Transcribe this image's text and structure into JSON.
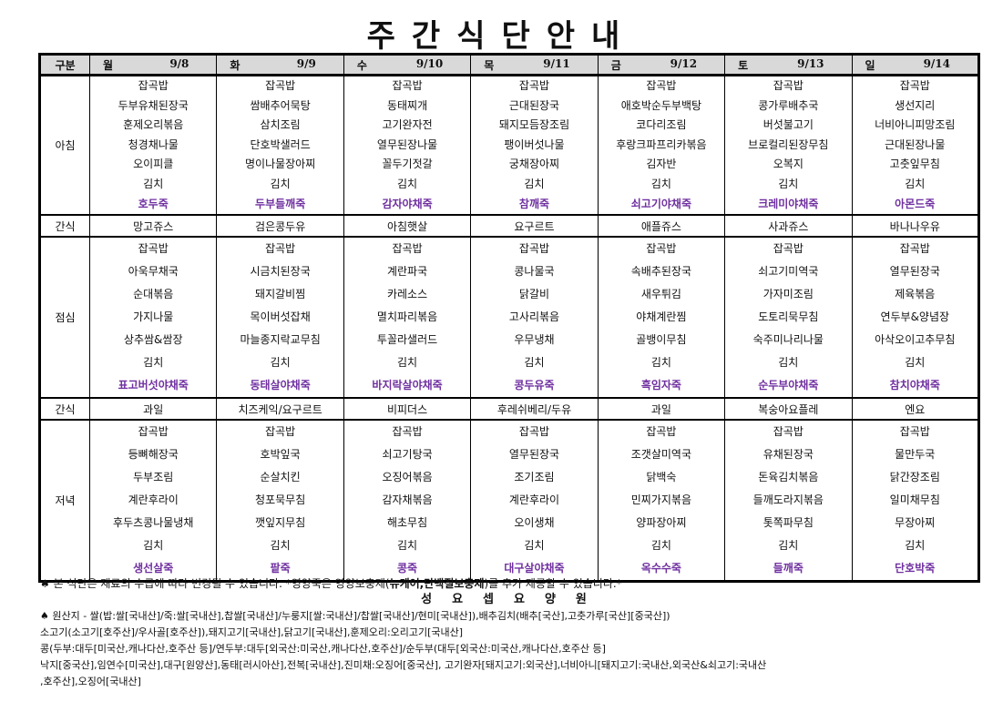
{
  "title": "주간식단안내",
  "header": {
    "category": "구분"
  },
  "meal_labels": {
    "breakfast": "아침",
    "snack": "간식",
    "lunch": "점심",
    "dinner": "저녁"
  },
  "accent_color": "#7030a0",
  "days": [
    {
      "day": "월",
      "date": "9/8",
      "breakfast": [
        "잡곡밥",
        "두부유채된장국",
        "훈제오리볶음",
        "청경채나물",
        "오이피클",
        "김치",
        "호두죽"
      ],
      "snack1": "망고쥬스",
      "lunch": [
        "잡곡밥",
        "아욱무채국",
        "순대볶음",
        "가지나물",
        "상추쌈&쌈장",
        "김치",
        "표고버섯야채죽"
      ],
      "snack2": "과일",
      "dinner": [
        "잡곡밥",
        "등뼈해장국",
        "두부조림",
        "계란후라이",
        "후두츠콩나물냉채",
        "김치",
        "생선살죽"
      ]
    },
    {
      "day": "화",
      "date": "9/9",
      "breakfast": [
        "잡곡밥",
        "쌈배추어묵탕",
        "삼치조림",
        "단호박샐러드",
        "명이나물장아찌",
        "김치",
        "두부들깨죽"
      ],
      "snack1": "검은콩두유",
      "lunch": [
        "잡곡밥",
        "시금치된장국",
        "돼지갈비찜",
        "목이버섯잡채",
        "마늘종지락교무침",
        "김치",
        "동태살야채죽"
      ],
      "snack2": "치즈케익/요구르트",
      "dinner": [
        "잡곡밥",
        "호박잎국",
        "순살치킨",
        "청포묵무침",
        "깻잎지무침",
        "김치",
        "팥죽"
      ]
    },
    {
      "day": "수",
      "date": "9/10",
      "breakfast": [
        "잡곡밥",
        "동태찌개",
        "고기완자전",
        "열무된장나물",
        "꼴두기젓갈",
        "김치",
        "감자야채죽"
      ],
      "snack1": "아침햇살",
      "lunch": [
        "잡곡밥",
        "계란파국",
        "카레소스",
        "멸치파리볶음",
        "투꼴라샐러드",
        "김치",
        "바지락살야채죽"
      ],
      "snack2": "비피더스",
      "dinner": [
        "잡곡밥",
        "쇠고기탕국",
        "오징어볶음",
        "감자채볶음",
        "해초무침",
        "김치",
        "콩죽"
      ]
    },
    {
      "day": "목",
      "date": "9/11",
      "breakfast": [
        "잡곡밥",
        "근대된장국",
        "돼지모듬장조림",
        "팽이버섯나물",
        "궁채장아찌",
        "김치",
        "참깨죽"
      ],
      "snack1": "요구르트",
      "lunch": [
        "잡곡밥",
        "콩나물국",
        "닭갈비",
        "고사리볶음",
        "우무냉채",
        "김치",
        "콩두유죽"
      ],
      "snack2": "후레쉬베리/두유",
      "dinner": [
        "잡곡밥",
        "열무된장국",
        "조기조림",
        "계란후라이",
        "오이생채",
        "김치",
        "대구살야채죽"
      ]
    },
    {
      "day": "금",
      "date": "9/12",
      "breakfast": [
        "잡곡밥",
        "애호박순두부백탕",
        "코다리조림",
        "후랑크파프리카볶음",
        "김자반",
        "김치",
        "쇠고기야채죽"
      ],
      "snack1": "애플쥬스",
      "lunch": [
        "잡곡밥",
        "속배추된장국",
        "새우튀김",
        "야채계란찜",
        "골뱅이무침",
        "김치",
        "흑임자죽"
      ],
      "snack2": "과일",
      "dinner": [
        "잡곡밥",
        "조갯살미역국",
        "닭백숙",
        "민찌가지볶음",
        "양파장아찌",
        "김치",
        "옥수수죽"
      ]
    },
    {
      "day": "토",
      "date": "9/13",
      "breakfast": [
        "잡곡밥",
        "콩가루배추국",
        "버섯불고기",
        "브로컬리된장무침",
        "오복지",
        "김치",
        "크레미야채죽"
      ],
      "snack1": "사과쥬스",
      "lunch": [
        "잡곡밥",
        "쇠고기미역국",
        "가자미조림",
        "도토리묵무침",
        "숙주미나리나물",
        "김치",
        "순두부야채죽"
      ],
      "snack2": "복숭아요플레",
      "dinner": [
        "잡곡밥",
        "유채된장국",
        "돈육김치볶음",
        "들깨도라지볶음",
        "톳쪽파무침",
        "김치",
        "들깨죽"
      ]
    },
    {
      "day": "일",
      "date": "9/14",
      "breakfast": [
        "잡곡밥",
        "생선지리",
        "너비아니피망조림",
        "근대된장나물",
        "고춧잎무침",
        "김치",
        "아몬드죽"
      ],
      "snack1": "바나나우유",
      "lunch": [
        "잡곡밥",
        "열무된장국",
        "제육볶음",
        "연두부&양념장",
        "아삭오이고추무침",
        "김치",
        "참치야채죽"
      ],
      "snack2": "엔요",
      "dinner": [
        "잡곡밥",
        "물만두국",
        "닭간장조림",
        "일미채무침",
        "무장아찌",
        "김치",
        "단호박죽"
      ]
    }
  ],
  "notes": {
    "line1_a": "♠ 본 식단은 재료의 수급에 따라 변경될 수 있습니다.  *영양죽은 영양보충제(",
    "line1_b": "뉴케어,단백질보충제",
    "line1_c": ")를 추가 제공할 수 있습니다.*",
    "org": "성요셉요양원",
    "origin": [
      "♠ 원산지 - 쌀(밥:쌀[국내산]/죽:쌀[국내산],찹쌀[국내산]/누룽지[쌀:국내산]/찹쌀[국내산]/현미[국내산]),배추김치(배추[국산],고춧가루[국산][중국산])",
      "소고기(소고기[호주산]/우사골[호주산]),돼지고기[국내산],닭고기[국내산],훈제오리:오리고기[국내산]",
      "콩(두부:대두[미국산,캐나다산,호주산 등]/연두부:대두[외국산:미국산,캐나다산,호주산]/순두부(대두[외국산:미국산,캐나다산,호주산 등]",
      "낙지[중국산],임연수[미국산],대구[원양산],동태[러시아산],전복[국내산],진미채:오징어[중국산], 고기완자[돼지고기:외국산],너비아니[돼지고기:국내산,외국산&쇠고기:국내산",
      ",호주산],오징어[국내산]"
    ]
  }
}
